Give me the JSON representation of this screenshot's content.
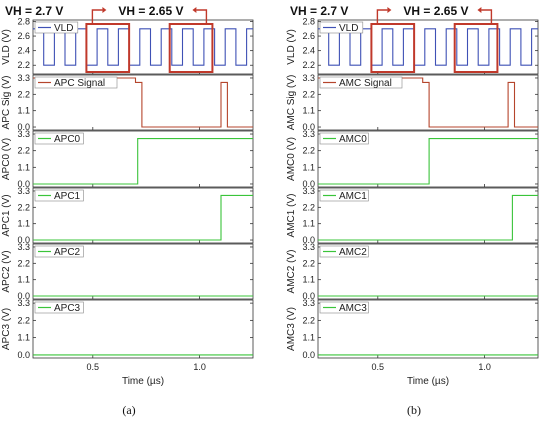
{
  "captions": [
    "(a)",
    "(b)"
  ],
  "x_axis_label": "Time (µs)",
  "colors": {
    "vld": "#3f51b5",
    "signal": "#b5452c",
    "bits": "#3ac43a",
    "highlight": "#c0392b"
  },
  "chart_data": [
    {
      "type": "line",
      "caption": "(a)",
      "vh_labels": [
        "VH = 2.7 V",
        "VH = 2.65 V"
      ],
      "xlim": [
        0.22,
        1.25
      ],
      "x_ticks": [
        "0.5",
        "1.0"
      ],
      "x_tick_values": [
        0.5,
        1.0
      ],
      "highlight_windows": [
        [
          0.47,
          0.67
        ],
        [
          0.86,
          1.06
        ]
      ],
      "panels": [
        {
          "ylabel": "VLD (V)",
          "legend": "VLD",
          "ylim": [
            2.08,
            2.82
          ],
          "yticks": [
            2.2,
            2.4,
            2.6,
            2.8
          ],
          "tick_labels": [
            "2.2",
            "2.4",
            "2.6",
            "2.8"
          ],
          "color_key": "vld",
          "waveform": {
            "kind": "pulse",
            "low": 2.2,
            "high": 2.7,
            "period": 0.1,
            "duty": 0.5,
            "start": 0.22,
            "end": 1.25
          }
        },
        {
          "ylabel": "APC Sig (V)",
          "legend": "APC Signal",
          "ylim": [
            -0.2,
            3.5
          ],
          "yticks": [
            0,
            1.1,
            2.2,
            3.3
          ],
          "tick_labels": [
            "0.0",
            "1.1",
            "2.2",
            "3.3"
          ],
          "color_key": "signal",
          "waveform": {
            "kind": "steps",
            "x": [
              0.22,
              0.7,
              0.7,
              0.73,
              0.73,
              1.1,
              1.1,
              1.13,
              1.13,
              1.25
            ],
            "y": [
              3.3,
              3.3,
              3.0,
              3.0,
              0.0,
              0.0,
              3.0,
              3.0,
              0.0,
              0.0
            ]
          }
        },
        {
          "ylabel": "APC0 (V)",
          "legend": "APC0",
          "ylim": [
            -0.2,
            3.5
          ],
          "yticks": [
            0,
            1.1,
            2.2,
            3.3
          ],
          "tick_labels": [
            "0.0",
            "1.1",
            "2.2",
            "3.3"
          ],
          "color_key": "bits",
          "waveform": {
            "kind": "steps",
            "x": [
              0.22,
              0.71,
              0.71,
              1.25
            ],
            "y": [
              0.0,
              0.0,
              3.0,
              3.0
            ]
          }
        },
        {
          "ylabel": "APC1 (V)",
          "legend": "APC1",
          "ylim": [
            -0.2,
            3.5
          ],
          "yticks": [
            0,
            1.1,
            2.2,
            3.3
          ],
          "tick_labels": [
            "0.0",
            "1.1",
            "2.2",
            "3.3"
          ],
          "color_key": "bits",
          "waveform": {
            "kind": "steps",
            "x": [
              0.22,
              1.1,
              1.1,
              1.25
            ],
            "y": [
              0.0,
              0.0,
              3.0,
              3.0
            ]
          }
        },
        {
          "ylabel": "APC2 (V)",
          "legend": "APC2",
          "ylim": [
            -0.2,
            3.5
          ],
          "yticks": [
            0,
            1.1,
            2.2,
            3.3
          ],
          "tick_labels": [
            "0.0",
            "1.1",
            "2.2",
            "3.3"
          ],
          "color_key": "bits",
          "waveform": {
            "kind": "steps",
            "x": [
              0.22,
              1.25
            ],
            "y": [
              0.0,
              0.0
            ]
          }
        },
        {
          "ylabel": "APC3 (V)",
          "legend": "APC3",
          "ylim": [
            -0.2,
            3.5
          ],
          "yticks": [
            0,
            1.1,
            2.2,
            3.3
          ],
          "tick_labels": [
            "0.0",
            "1.1",
            "2.2",
            "3.3"
          ],
          "color_key": "bits",
          "waveform": {
            "kind": "steps",
            "x": [
              0.22,
              1.25
            ],
            "y": [
              0.0,
              0.0
            ]
          }
        }
      ]
    },
    {
      "type": "line",
      "caption": "(b)",
      "vh_labels": [
        "VH = 2.7 V",
        "VH = 2.65 V"
      ],
      "xlim": [
        0.22,
        1.25
      ],
      "x_ticks": [
        "0.5",
        "1.0"
      ],
      "x_tick_values": [
        0.5,
        1.0
      ],
      "highlight_windows": [
        [
          0.47,
          0.67
        ],
        [
          0.86,
          1.06
        ]
      ],
      "panels": [
        {
          "ylabel": "VLD (V)",
          "legend": "VLD",
          "ylim": [
            2.08,
            2.82
          ],
          "yticks": [
            2.2,
            2.4,
            2.6,
            2.8
          ],
          "tick_labels": [
            "2.2",
            "2.4",
            "2.6",
            "2.8"
          ],
          "color_key": "vld",
          "waveform": {
            "kind": "pulse",
            "low": 2.2,
            "high": 2.7,
            "period": 0.1,
            "duty": 0.5,
            "start": 0.22,
            "end": 1.25
          }
        },
        {
          "ylabel": "AMC Sig (V)",
          "legend": "AMC Signal",
          "ylim": [
            -0.2,
            3.5
          ],
          "yticks": [
            0,
            1.1,
            2.2,
            3.3
          ],
          "tick_labels": [
            "0.0",
            "1.1",
            "2.2",
            "3.3"
          ],
          "color_key": "signal",
          "waveform": {
            "kind": "steps",
            "x": [
              0.22,
              0.71,
              0.71,
              0.74,
              0.74,
              1.11,
              1.11,
              1.14,
              1.14,
              1.25
            ],
            "y": [
              3.3,
              3.3,
              3.0,
              3.0,
              0.0,
              0.0,
              3.0,
              3.0,
              0.0,
              0.0
            ]
          }
        },
        {
          "ylabel": "AMC0 (V)",
          "legend": "AMC0",
          "ylim": [
            -0.2,
            3.5
          ],
          "yticks": [
            0,
            1.1,
            2.2,
            3.3
          ],
          "tick_labels": [
            "0.0",
            "1.1",
            "2.2",
            "3.3"
          ],
          "color_key": "bits",
          "waveform": {
            "kind": "steps",
            "x": [
              0.22,
              0.74,
              0.74,
              1.25
            ],
            "y": [
              0.0,
              0.0,
              3.0,
              3.0
            ]
          }
        },
        {
          "ylabel": "AMC1 (V)",
          "legend": "AMC1",
          "ylim": [
            -0.2,
            3.5
          ],
          "yticks": [
            0,
            1.1,
            2.2,
            3.3
          ],
          "tick_labels": [
            "0.0",
            "1.1",
            "2.2",
            "3.3"
          ],
          "color_key": "bits",
          "waveform": {
            "kind": "steps",
            "x": [
              0.22,
              1.13,
              1.13,
              1.25
            ],
            "y": [
              0.0,
              0.0,
              3.0,
              3.0
            ]
          }
        },
        {
          "ylabel": "AMC2 (V)",
          "legend": "AMC2",
          "ylim": [
            -0.2,
            3.5
          ],
          "yticks": [
            0,
            1.1,
            2.2,
            3.3
          ],
          "tick_labels": [
            "0.0",
            "1.1",
            "2.2",
            "3.3"
          ],
          "color_key": "bits",
          "waveform": {
            "kind": "steps",
            "x": [
              0.22,
              1.25
            ],
            "y": [
              0.0,
              0.0
            ]
          }
        },
        {
          "ylabel": "AMC3 (V)",
          "legend": "AMC3",
          "ylim": [
            -0.2,
            3.5
          ],
          "yticks": [
            0,
            1.1,
            2.2,
            3.3
          ],
          "tick_labels": [
            "0.0",
            "1.1",
            "2.2",
            "3.3"
          ],
          "color_key": "bits",
          "waveform": {
            "kind": "steps",
            "x": [
              0.22,
              1.25
            ],
            "y": [
              0.0,
              0.0
            ]
          }
        }
      ]
    }
  ]
}
